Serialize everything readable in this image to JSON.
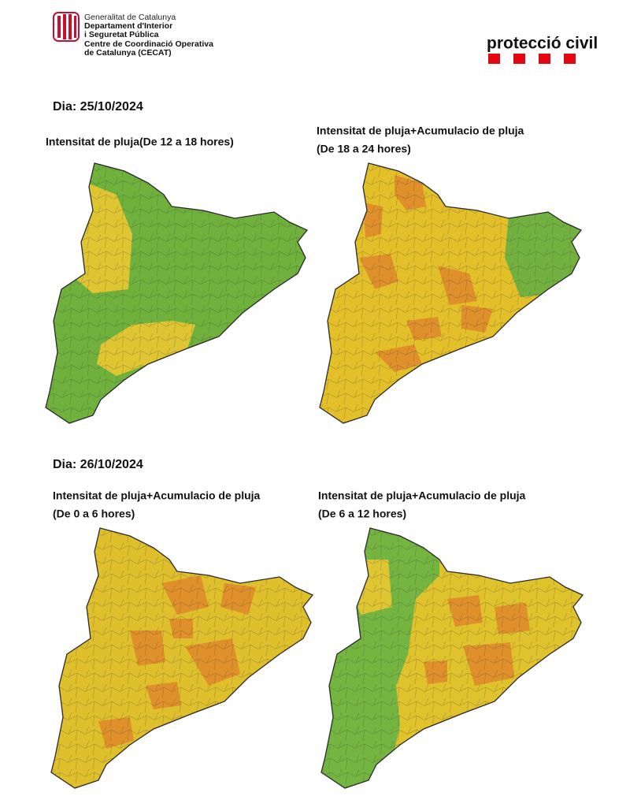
{
  "header": {
    "org_lines": [
      "Generalitat de Catalunya",
      "Departament d'Interior",
      "i Seguretat Pública",
      "Centre de Coordinació Operativa",
      "de Catalunya (CECAT)"
    ],
    "brand": "protecció civil"
  },
  "days": [
    {
      "label": "Dia: 25/10/2024",
      "maps": [
        {
          "title_lines": [
            "Intensitat de pluja(De 12 a 18 hores)"
          ]
        },
        {
          "title_lines": [
            "Intensitat de pluja+Acumulacio de pluja",
            "(De 18 a 24 hores)"
          ]
        }
      ]
    },
    {
      "label": "Dia: 26/10/2024",
      "maps": [
        {
          "title_lines": [
            "Intensitat de pluja+Acumulacio de pluja",
            "(De 0 a 6 hores)"
          ]
        },
        {
          "title_lines": [
            "Intensitat de pluja+Acumulacio de pluja",
            "(De 6 a 12 hores)"
          ]
        }
      ]
    }
  ]
}
